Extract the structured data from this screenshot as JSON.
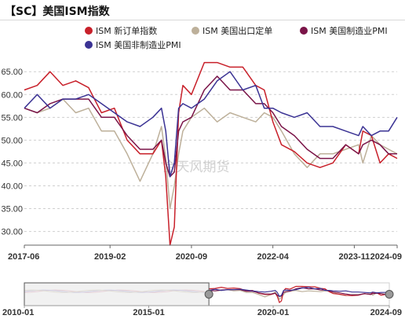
{
  "header": {
    "title": "【SC】美国ISM指数"
  },
  "watermark": "金天风期货",
  "colors": {
    "red": "#c8202a",
    "tan": "#bdb09a",
    "maroon": "#7a1448",
    "blue": "#3b3394",
    "grid": "#cfcfcf"
  },
  "chart_data": {
    "type": "line",
    "title": "【SC】美国ISM指数",
    "xlabel": "",
    "ylabel": "",
    "ylim": [
      27,
      69
    ],
    "y_ticks": [
      "30.00",
      "35.00",
      "40.00",
      "45.00",
      "50.00",
      "55.00",
      "60.00",
      "65.00"
    ],
    "x_ticks": [
      "2017-06",
      "2019-02",
      "2020-09",
      "2022-04",
      "2023-11",
      "2024-09"
    ],
    "grid": "horizontal dashed",
    "legend_position": "top",
    "navigator": {
      "start": "2010-01",
      "end": "2024-09",
      "labels": [
        "2010-01",
        "2015-01",
        "2020-01",
        "2024-09"
      ],
      "window_start": "2017-06"
    },
    "series": [
      {
        "name": "ISM 新订单指数",
        "color": "#c8202a",
        "key": "red",
        "points": [
          [
            "2017-06",
            61
          ],
          [
            "2017-09",
            62
          ],
          [
            "2017-12",
            65
          ],
          [
            "2018-03",
            62
          ],
          [
            "2018-06",
            63
          ],
          [
            "2018-09",
            61.5
          ],
          [
            "2018-12",
            56
          ],
          [
            "2019-03",
            57
          ],
          [
            "2019-06",
            50
          ],
          [
            "2019-09",
            47
          ],
          [
            "2019-12",
            47
          ],
          [
            "2020-02",
            50
          ],
          [
            "2020-03",
            42
          ],
          [
            "2020-04",
            27
          ],
          [
            "2020-05",
            31
          ],
          [
            "2020-06",
            56
          ],
          [
            "2020-07",
            62
          ],
          [
            "2020-09",
            60
          ],
          [
            "2020-12",
            67
          ],
          [
            "2021-03",
            67
          ],
          [
            "2021-06",
            66
          ],
          [
            "2021-09",
            66
          ],
          [
            "2021-12",
            62
          ],
          [
            "2022-02",
            61
          ],
          [
            "2022-04",
            54
          ],
          [
            "2022-06",
            49
          ],
          [
            "2022-09",
            47.5
          ],
          [
            "2022-12",
            45
          ],
          [
            "2023-03",
            44
          ],
          [
            "2023-06",
            45
          ],
          [
            "2023-09",
            49
          ],
          [
            "2023-12",
            47
          ],
          [
            "2024-01",
            52
          ],
          [
            "2024-03",
            51
          ],
          [
            "2024-05",
            45
          ],
          [
            "2024-07",
            47
          ],
          [
            "2024-09",
            46
          ]
        ]
      },
      {
        "name": "ISM 美国出口定单",
        "color": "#bdb09a",
        "key": "tan",
        "points": [
          [
            "2017-06",
            57
          ],
          [
            "2017-09",
            56
          ],
          [
            "2017-12",
            57
          ],
          [
            "2018-03",
            59
          ],
          [
            "2018-06",
            56
          ],
          [
            "2018-09",
            57
          ],
          [
            "2018-12",
            52
          ],
          [
            "2019-03",
            52
          ],
          [
            "2019-06",
            47
          ],
          [
            "2019-09",
            41
          ],
          [
            "2019-12",
            47
          ],
          [
            "2020-02",
            53
          ],
          [
            "2020-03",
            46
          ],
          [
            "2020-04",
            35
          ],
          [
            "2020-05",
            40
          ],
          [
            "2020-06",
            47
          ],
          [
            "2020-07",
            52
          ],
          [
            "2020-09",
            55
          ],
          [
            "2020-12",
            57
          ],
          [
            "2021-03",
            54
          ],
          [
            "2021-06",
            56
          ],
          [
            "2021-09",
            55
          ],
          [
            "2021-12",
            54
          ],
          [
            "2022-02",
            56
          ],
          [
            "2022-04",
            55
          ],
          [
            "2022-06",
            52
          ],
          [
            "2022-09",
            47
          ],
          [
            "2022-12",
            44
          ],
          [
            "2023-03",
            47
          ],
          [
            "2023-06",
            47
          ],
          [
            "2023-09",
            48
          ],
          [
            "2023-12",
            49
          ],
          [
            "2024-01",
            45
          ],
          [
            "2024-03",
            51
          ],
          [
            "2024-05",
            49
          ],
          [
            "2024-07",
            48
          ],
          [
            "2024-09",
            47
          ]
        ]
      },
      {
        "name": "ISM 美国制造业PMI",
        "color": "#7a1448",
        "key": "maroon",
        "points": [
          [
            "2017-06",
            57
          ],
          [
            "2017-09",
            56
          ],
          [
            "2017-12",
            58
          ],
          [
            "2018-03",
            59
          ],
          [
            "2018-06",
            59
          ],
          [
            "2018-09",
            59
          ],
          [
            "2018-12",
            55
          ],
          [
            "2019-03",
            55
          ],
          [
            "2019-06",
            51
          ],
          [
            "2019-09",
            48
          ],
          [
            "2019-12",
            48
          ],
          [
            "2020-02",
            50
          ],
          [
            "2020-03",
            45
          ],
          [
            "2020-04",
            42
          ],
          [
            "2020-05",
            43
          ],
          [
            "2020-06",
            52
          ],
          [
            "2020-07",
            54
          ],
          [
            "2020-09",
            55
          ],
          [
            "2020-12",
            61
          ],
          [
            "2021-03",
            64
          ],
          [
            "2021-06",
            61
          ],
          [
            "2021-09",
            61
          ],
          [
            "2021-12",
            58
          ],
          [
            "2022-02",
            58
          ],
          [
            "2022-04",
            56
          ],
          [
            "2022-06",
            53
          ],
          [
            "2022-09",
            51
          ],
          [
            "2022-12",
            48
          ],
          [
            "2023-03",
            46
          ],
          [
            "2023-06",
            46
          ],
          [
            "2023-09",
            49
          ],
          [
            "2023-12",
            47
          ],
          [
            "2024-01",
            49
          ],
          [
            "2024-03",
            50
          ],
          [
            "2024-05",
            49
          ],
          [
            "2024-07",
            47
          ],
          [
            "2024-09",
            47
          ]
        ]
      },
      {
        "name": "ISM 美国非制造业PMI",
        "color": "#3b3394",
        "key": "blue",
        "points": [
          [
            "2017-06",
            57
          ],
          [
            "2017-09",
            60
          ],
          [
            "2017-12",
            57
          ],
          [
            "2018-03",
            59
          ],
          [
            "2018-06",
            59
          ],
          [
            "2018-09",
            60
          ],
          [
            "2018-12",
            58
          ],
          [
            "2019-03",
            56
          ],
          [
            "2019-06",
            54
          ],
          [
            "2019-09",
            53
          ],
          [
            "2019-12",
            55
          ],
          [
            "2020-02",
            57
          ],
          [
            "2020-03",
            52
          ],
          [
            "2020-04",
            42
          ],
          [
            "2020-05",
            45
          ],
          [
            "2020-06",
            57
          ],
          [
            "2020-07",
            58
          ],
          [
            "2020-09",
            57
          ],
          [
            "2020-12",
            59
          ],
          [
            "2021-03",
            63
          ],
          [
            "2021-06",
            65
          ],
          [
            "2021-09",
            61
          ],
          [
            "2021-12",
            62
          ],
          [
            "2022-02",
            57
          ],
          [
            "2022-04",
            57
          ],
          [
            "2022-06",
            56
          ],
          [
            "2022-09",
            55
          ],
          [
            "2022-12",
            56
          ],
          [
            "2023-03",
            53
          ],
          [
            "2023-06",
            53
          ],
          [
            "2023-09",
            52
          ],
          [
            "2023-12",
            51
          ],
          [
            "2024-01",
            53
          ],
          [
            "2024-03",
            51
          ],
          [
            "2024-05",
            52
          ],
          [
            "2024-07",
            52
          ],
          [
            "2024-09",
            55
          ]
        ]
      }
    ]
  }
}
